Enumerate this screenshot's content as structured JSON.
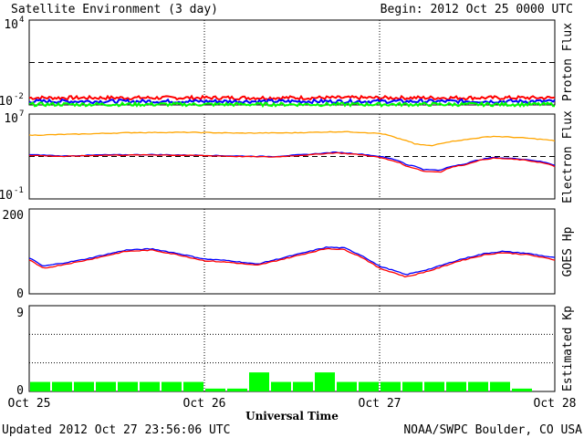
{
  "header": {
    "title": "Satellite Environment (3 day)",
    "begin": "Begin:  2012 Oct 25 0000 UTC"
  },
  "footer": {
    "updated": "Updated 2012 Oct 27 23:56:06 UTC",
    "source": "NOAA/SWPC Boulder, CO USA"
  },
  "colors": {
    "red": "#ff0000",
    "blue": "#0000ff",
    "green": "#00ff00",
    "orange": "#ffa500",
    "frame": "#000000"
  },
  "chart_data": [
    {
      "id": "proton",
      "type": "line",
      "ylabel": "Proton Flux",
      "yscale": "log",
      "ylim_exp": [
        -2,
        4
      ],
      "tick_labels": [
        {
          "base": "10",
          "exp": "4"
        },
        {
          "base": "10",
          "exp": "-2"
        }
      ],
      "threshold": 10,
      "x_days": [
        0,
        3
      ],
      "series": [
        {
          "color": "red",
          "base": 0.032,
          "noise": 0.25
        },
        {
          "color": "blue",
          "base": 0.018,
          "noise": 0.25
        },
        {
          "color": "green",
          "base": 0.011,
          "noise": 0.25
        }
      ]
    },
    {
      "id": "electron",
      "type": "line",
      "ylabel": "Electron Flux",
      "yscale": "log",
      "ylim_exp": [
        -1,
        7
      ],
      "tick_labels": [
        {
          "base": "10",
          "exp": "7"
        },
        {
          "base": "10",
          "exp": "-1"
        }
      ],
      "threshold": 1000,
      "x_days": [
        0,
        3
      ],
      "series": [
        {
          "color": "orange",
          "points": [
            [
              0,
              100000
            ],
            [
              0.3,
              130000
            ],
            [
              0.6,
              180000
            ],
            [
              0.9,
              190000
            ],
            [
              1.2,
              160000
            ],
            [
              1.5,
              170000
            ],
            [
              1.8,
              220000
            ],
            [
              2.0,
              150000
            ],
            [
              2.1,
              50000
            ],
            [
              2.2,
              15000
            ],
            [
              2.3,
              10000
            ],
            [
              2.5,
              40000
            ],
            [
              2.65,
              80000
            ],
            [
              2.8,
              60000
            ],
            [
              3.0,
              30000
            ]
          ]
        },
        {
          "color": "blue",
          "points": [
            [
              0,
              1500
            ],
            [
              0.2,
              1100
            ],
            [
              0.4,
              1400
            ],
            [
              0.7,
              1500
            ],
            [
              1.0,
              1300
            ],
            [
              1.2,
              1100
            ],
            [
              1.4,
              1000
            ],
            [
              1.6,
              1600
            ],
            [
              1.75,
              2500
            ],
            [
              1.9,
              1600
            ],
            [
              2.05,
              700
            ],
            [
              2.15,
              180
            ],
            [
              2.25,
              60
            ],
            [
              2.35,
              50
            ],
            [
              2.5,
              220
            ],
            [
              2.65,
              800
            ],
            [
              2.8,
              600
            ],
            [
              3.0,
              150
            ]
          ]
        },
        {
          "color": "red",
          "points": [
            [
              0,
              1300
            ],
            [
              0.2,
              1000
            ],
            [
              0.4,
              1300
            ],
            [
              0.7,
              1400
            ],
            [
              1.0,
              1200
            ],
            [
              1.2,
              1000
            ],
            [
              1.4,
              900
            ],
            [
              1.6,
              1400
            ],
            [
              1.75,
              2200
            ],
            [
              1.9,
              1400
            ],
            [
              2.05,
              500
            ],
            [
              2.15,
              120
            ],
            [
              2.25,
              40
            ],
            [
              2.35,
              35
            ],
            [
              2.5,
              180
            ],
            [
              2.65,
              700
            ],
            [
              2.8,
              500
            ],
            [
              3.0,
              110
            ]
          ]
        }
      ]
    },
    {
      "id": "goes",
      "type": "line",
      "ylabel": "GOES Hp",
      "yscale": "linear",
      "ylim": [
        0,
        200
      ],
      "tick_labels": [
        "200",
        "0"
      ],
      "x_days": [
        0,
        3
      ],
      "series": [
        {
          "color": "blue",
          "points": [
            [
              0,
              85
            ],
            [
              0.08,
              65
            ],
            [
              0.3,
              80
            ],
            [
              0.55,
              103
            ],
            [
              0.7,
              106
            ],
            [
              0.85,
              95
            ],
            [
              1.0,
              82
            ],
            [
              1.15,
              78
            ],
            [
              1.3,
              70
            ],
            [
              1.45,
              85
            ],
            [
              1.6,
              100
            ],
            [
              1.7,
              110
            ],
            [
              1.8,
              108
            ],
            [
              1.9,
              90
            ],
            [
              2.0,
              65
            ],
            [
              2.08,
              55
            ],
            [
              2.15,
              45
            ],
            [
              2.2,
              50
            ],
            [
              2.3,
              60
            ],
            [
              2.45,
              80
            ],
            [
              2.6,
              95
            ],
            [
              2.7,
              100
            ],
            [
              2.85,
              95
            ],
            [
              3.0,
              85
            ]
          ]
        },
        {
          "color": "red",
          "points": [
            [
              0,
              80
            ],
            [
              0.08,
              60
            ],
            [
              0.3,
              77
            ],
            [
              0.55,
              100
            ],
            [
              0.7,
              103
            ],
            [
              0.85,
              92
            ],
            [
              1.0,
              78
            ],
            [
              1.15,
              74
            ],
            [
              1.3,
              67
            ],
            [
              1.45,
              82
            ],
            [
              1.6,
              97
            ],
            [
              1.7,
              107
            ],
            [
              1.8,
              104
            ],
            [
              1.9,
              86
            ],
            [
              2.0,
              60
            ],
            [
              2.08,
              50
            ],
            [
              2.15,
              40
            ],
            [
              2.2,
              45
            ],
            [
              2.3,
              56
            ],
            [
              2.45,
              77
            ],
            [
              2.6,
              92
            ],
            [
              2.7,
              97
            ],
            [
              2.85,
              92
            ],
            [
              3.0,
              80
            ]
          ]
        }
      ]
    },
    {
      "id": "kp",
      "type": "bar",
      "ylabel": "Estimated Kp",
      "ylim": [
        0,
        9
      ],
      "tick_labels": [
        "9",
        "0"
      ],
      "gridlines": [
        3,
        6,
        9
      ],
      "bar_color": "green",
      "values": [
        1,
        1,
        1,
        1,
        1,
        1,
        1,
        1,
        0.3,
        0.3,
        2,
        1,
        1,
        2,
        1,
        1,
        1,
        1,
        1,
        1,
        1,
        1,
        0.3,
        0
      ]
    }
  ],
  "x_axis": {
    "label": "Universal Time",
    "ticks": [
      "Oct 25",
      "Oct 26",
      "Oct 27",
      "Oct 28"
    ]
  }
}
